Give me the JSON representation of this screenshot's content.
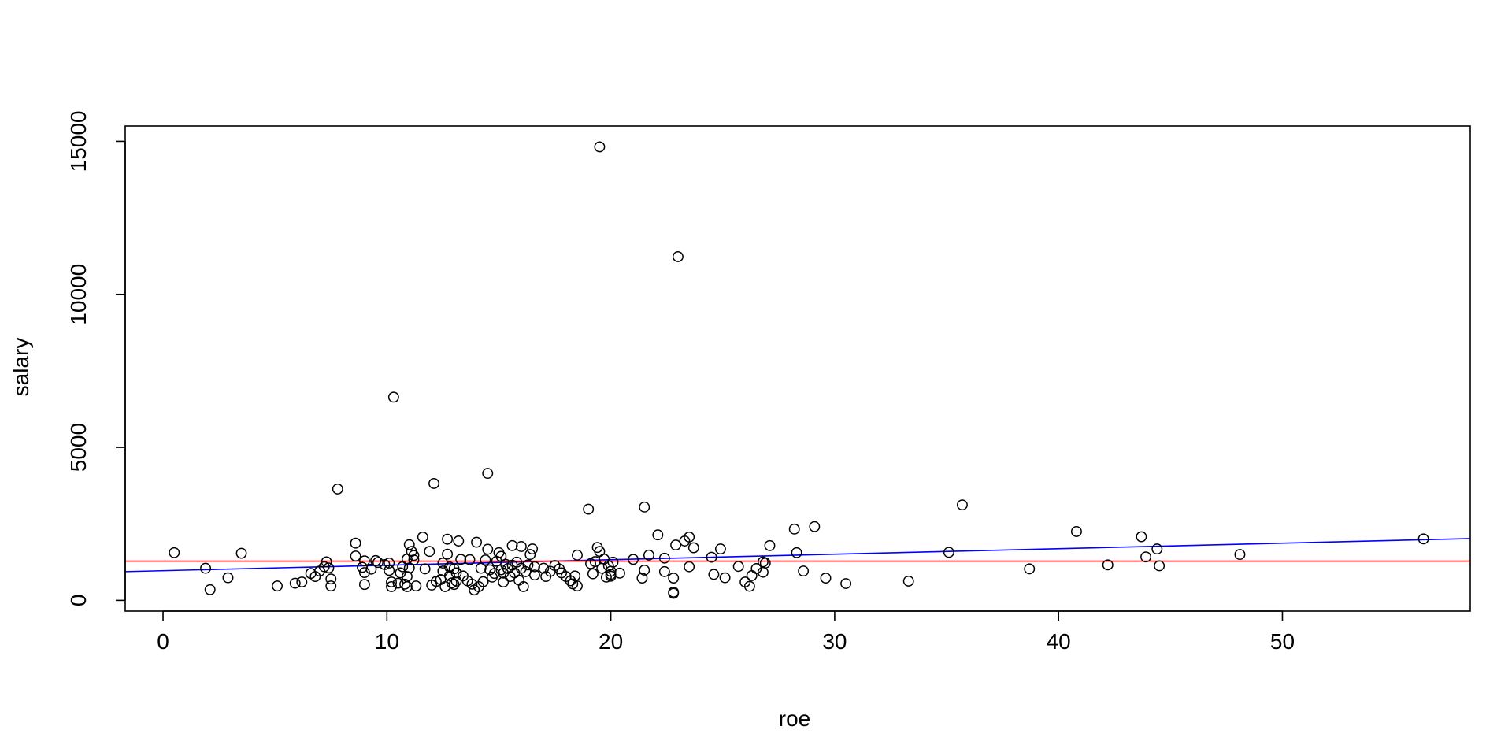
{
  "chart_data": {
    "type": "scatter",
    "title": "",
    "xlabel": "roe",
    "ylabel": "salary",
    "xlim": [
      -1.69,
      58.39
    ],
    "ylim": [
      -350,
      15500
    ],
    "xticks": [
      0,
      10,
      20,
      30,
      40,
      50
    ],
    "yticks": [
      0,
      5000,
      10000,
      15000
    ],
    "xtick_labels": [
      "0",
      "10",
      "20",
      "30",
      "40",
      "50"
    ],
    "ytick_labels": [
      "0",
      "5000",
      "10000",
      "15000"
    ],
    "grid": false,
    "legend": null,
    "lines": [
      {
        "kind": "regression",
        "color": "#0000ff",
        "x": [
          -1.69,
          58.39
        ],
        "y": [
          940,
          2020
        ]
      },
      {
        "kind": "horizontal",
        "color": "#ff0000",
        "y": 1281
      }
    ],
    "points": [
      [
        0.5,
        1560
      ],
      [
        1.9,
        1050
      ],
      [
        2.1,
        350
      ],
      [
        2.9,
        740
      ],
      [
        3.5,
        1540
      ],
      [
        5.1,
        470
      ],
      [
        5.9,
        560
      ],
      [
        6.2,
        600
      ],
      [
        6.6,
        880
      ],
      [
        6.8,
        780
      ],
      [
        7.0,
        960
      ],
      [
        7.2,
        1100
      ],
      [
        7.3,
        1260
      ],
      [
        7.4,
        1060
      ],
      [
        7.5,
        700
      ],
      [
        7.5,
        470
      ],
      [
        7.8,
        3640
      ],
      [
        8.6,
        1870
      ],
      [
        8.6,
        1450
      ],
      [
        8.9,
        1080
      ],
      [
        9.0,
        1290
      ],
      [
        9.0,
        910
      ],
      [
        9.0,
        520
      ],
      [
        9.3,
        1020
      ],
      [
        9.5,
        1300
      ],
      [
        9.6,
        1240
      ],
      [
        9.9,
        1170
      ],
      [
        10.1,
        1220
      ],
      [
        10.1,
        980
      ],
      [
        10.2,
        450
      ],
      [
        10.2,
        600
      ],
      [
        10.3,
        6640
      ],
      [
        10.5,
        560
      ],
      [
        10.6,
        900
      ],
      [
        10.7,
        1100
      ],
      [
        10.8,
        530
      ],
      [
        10.9,
        1350
      ],
      [
        10.9,
        780
      ],
      [
        10.9,
        450
      ],
      [
        11.0,
        1820
      ],
      [
        11.0,
        1060
      ],
      [
        11.1,
        1600
      ],
      [
        11.2,
        1470
      ],
      [
        11.2,
        1320
      ],
      [
        11.3,
        470
      ],
      [
        11.6,
        2070
      ],
      [
        11.7,
        1030
      ],
      [
        11.9,
        1600
      ],
      [
        12.0,
        500
      ],
      [
        12.1,
        3820
      ],
      [
        12.2,
        620
      ],
      [
        12.4,
        680
      ],
      [
        12.5,
        1220
      ],
      [
        12.5,
        960
      ],
      [
        12.6,
        450
      ],
      [
        12.7,
        2000
      ],
      [
        12.7,
        1510
      ],
      [
        12.8,
        1090
      ],
      [
        12.8,
        810
      ],
      [
        12.9,
        570
      ],
      [
        13.0,
        1030
      ],
      [
        13.0,
        520
      ],
      [
        13.1,
        630
      ],
      [
        13.1,
        900
      ],
      [
        13.2,
        1940
      ],
      [
        13.3,
        1340
      ],
      [
        13.4,
        800
      ],
      [
        13.6,
        640
      ],
      [
        13.7,
        1330
      ],
      [
        13.8,
        530
      ],
      [
        13.9,
        340
      ],
      [
        14.0,
        1900
      ],
      [
        14.1,
        450
      ],
      [
        14.2,
        1050
      ],
      [
        14.3,
        610
      ],
      [
        14.4,
        1320
      ],
      [
        14.5,
        4150
      ],
      [
        14.5,
        1670
      ],
      [
        14.6,
        1000
      ],
      [
        14.7,
        760
      ],
      [
        14.8,
        880
      ],
      [
        14.9,
        1280
      ],
      [
        15.0,
        1560
      ],
      [
        15.1,
        1440
      ],
      [
        15.1,
        1000
      ],
      [
        15.2,
        890
      ],
      [
        15.2,
        600
      ],
      [
        15.3,
        1180
      ],
      [
        15.4,
        1040
      ],
      [
        15.5,
        780
      ],
      [
        15.6,
        1790
      ],
      [
        15.6,
        1150
      ],
      [
        15.7,
        900
      ],
      [
        15.8,
        1250
      ],
      [
        15.9,
        660
      ],
      [
        16.0,
        1760
      ],
      [
        16.0,
        1050
      ],
      [
        16.1,
        450
      ],
      [
        16.2,
        940
      ],
      [
        16.3,
        1160
      ],
      [
        16.4,
        1500
      ],
      [
        16.5,
        1680
      ],
      [
        16.6,
        830
      ],
      [
        16.6,
        1100
      ],
      [
        17.0,
        1050
      ],
      [
        17.1,
        780
      ],
      [
        17.3,
        950
      ],
      [
        17.5,
        1140
      ],
      [
        17.7,
        1030
      ],
      [
        17.8,
        900
      ],
      [
        18.0,
        780
      ],
      [
        18.2,
        640
      ],
      [
        18.3,
        540
      ],
      [
        18.4,
        800
      ],
      [
        18.5,
        1480
      ],
      [
        18.5,
        470
      ],
      [
        19.0,
        2980
      ],
      [
        19.1,
        1200
      ],
      [
        19.2,
        870
      ],
      [
        19.3,
        1270
      ],
      [
        19.4,
        1730
      ],
      [
        19.5,
        14820
      ],
      [
        19.5,
        1600
      ],
      [
        19.6,
        1050
      ],
      [
        19.7,
        1350
      ],
      [
        19.8,
        760
      ],
      [
        19.9,
        1130
      ],
      [
        20.0,
        950
      ],
      [
        20.0,
        850
      ],
      [
        20.0,
        790
      ],
      [
        20.1,
        1250
      ],
      [
        20.4,
        890
      ],
      [
        21.0,
        1340
      ],
      [
        21.4,
        730
      ],
      [
        21.5,
        3050
      ],
      [
        21.5,
        990
      ],
      [
        21.7,
        1480
      ],
      [
        22.1,
        2140
      ],
      [
        22.4,
        1380
      ],
      [
        22.4,
        940
      ],
      [
        22.8,
        230
      ],
      [
        22.8,
        730
      ],
      [
        22.8,
        270
      ],
      [
        22.9,
        1810
      ],
      [
        23.0,
        11230
      ],
      [
        23.3,
        1940
      ],
      [
        23.5,
        2070
      ],
      [
        23.5,
        1100
      ],
      [
        23.7,
        1720
      ],
      [
        24.5,
        1410
      ],
      [
        24.6,
        850
      ],
      [
        24.9,
        1680
      ],
      [
        25.1,
        740
      ],
      [
        25.7,
        1110
      ],
      [
        26.0,
        600
      ],
      [
        26.2,
        460
      ],
      [
        26.3,
        810
      ],
      [
        26.5,
        1040
      ],
      [
        26.8,
        920
      ],
      [
        26.8,
        1260
      ],
      [
        26.9,
        1220
      ],
      [
        27.1,
        1790
      ],
      [
        28.2,
        2330
      ],
      [
        28.3,
        1560
      ],
      [
        28.6,
        960
      ],
      [
        29.1,
        2410
      ],
      [
        29.6,
        730
      ],
      [
        30.5,
        550
      ],
      [
        33.3,
        630
      ],
      [
        35.1,
        1570
      ],
      [
        35.7,
        3120
      ],
      [
        38.7,
        1030
      ],
      [
        40.8,
        2250
      ],
      [
        42.2,
        1160
      ],
      [
        43.7,
        2080
      ],
      [
        43.9,
        1420
      ],
      [
        44.4,
        1680
      ],
      [
        44.5,
        1130
      ],
      [
        48.1,
        1500
      ],
      [
        56.3,
        2010
      ]
    ]
  }
}
